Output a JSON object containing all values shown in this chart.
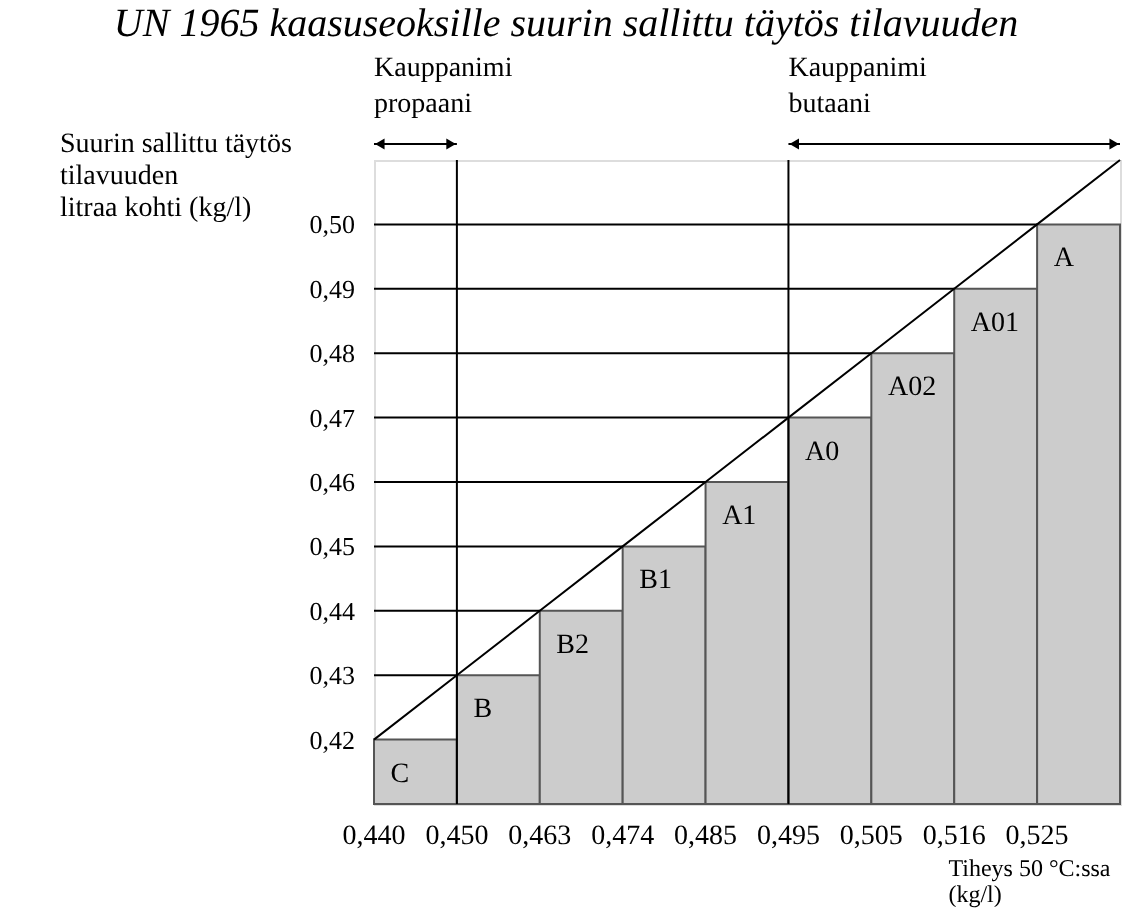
{
  "chart_data": {
    "type": "bar",
    "title": "UN 1965 kaasuseoksille suurin sallittu täytös tilavuuden",
    "ylabel": "Suurin sallittu täytös\ntilavuuden\nlitraa kohti (kg/l)",
    "xlabel": "Tiheys 50 °C:ssa\n(kg/l)",
    "categories": [
      "0,440",
      "0,450",
      "0,463",
      "0,474",
      "0,485",
      "0,495",
      "0,505",
      "0,516",
      "0,525",
      null
    ],
    "series": [
      {
        "color": "#cccccc",
        "values": [
          0.42,
          0.43,
          0.44,
          0.45,
          0.46,
          0.47,
          0.48,
          0.49,
          0.5,
          null
        ],
        "value_labels": [
          "C",
          "B",
          "B2",
          "B1",
          "A1",
          "A0",
          "A02",
          "A01",
          "A",
          null
        ]
      },
      {
        "type": "line",
        "color": "#000000",
        "values": [
          0.42,
          0.43,
          0.44,
          0.45,
          0.46,
          0.47,
          0.48,
          0.49,
          0.5,
          0.51
        ]
      }
    ],
    "ylim": [
      0.41,
      0.51
    ],
    "yticks": [
      {
        "value": 0.42,
        "label": "0,42"
      },
      {
        "value": 0.43,
        "label": "0,43"
      },
      {
        "value": 0.44,
        "label": "0,44"
      },
      {
        "value": 0.45,
        "label": "0,45"
      },
      {
        "value": 0.46,
        "label": "0,46"
      },
      {
        "value": 0.47,
        "label": "0,47"
      },
      {
        "value": 0.48,
        "label": "0,48"
      },
      {
        "value": 0.49,
        "label": "0,49"
      },
      {
        "value": 0.5,
        "label": "0,50"
      }
    ],
    "ref_lines": [
      {
        "axis": "x",
        "value": "0,450",
        "label": "Kauppanimi\npropaani"
      },
      {
        "axis": "x",
        "value": "0,495",
        "label": "Kauppanimi\nbutaani"
      }
    ],
    "grid": "y"
  }
}
